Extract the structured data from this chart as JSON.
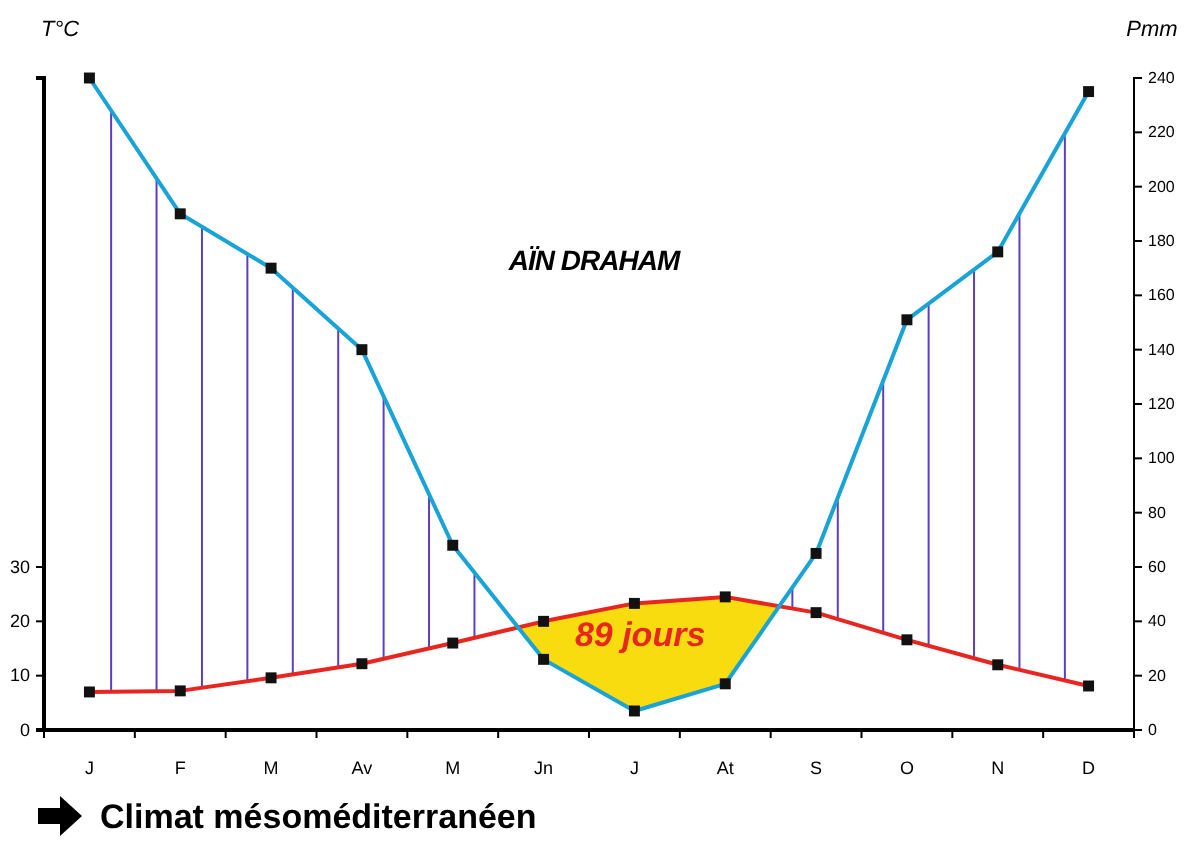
{
  "chart_data": {
    "type": "line",
    "title": "AÏN DRAHAM",
    "ylabel": "T°C",
    "y2label": "Pmm",
    "categories": [
      "J",
      "F",
      "M",
      "Av",
      "M",
      "Jn",
      "J",
      "At",
      "S",
      "O",
      "N",
      "D"
    ],
    "series": [
      {
        "axis": "y",
        "color": "#e8251f",
        "values": [
          7,
          7.2,
          9.6,
          12.2,
          16,
          20,
          23.3,
          24.5,
          21.6,
          16.6,
          12,
          8.1
        ]
      },
      {
        "axis": "y2",
        "color": "#1aa3d6",
        "values": [
          240,
          190,
          170,
          140,
          68,
          26,
          7,
          17,
          65,
          151,
          176,
          235
        ]
      }
    ],
    "ylim": [
      0,
      120
    ],
    "yticks": [
      0,
      10,
      20,
      30
    ],
    "y2lim": [
      0,
      240
    ],
    "y2ticks": [
      0,
      20,
      40,
      60,
      80,
      100,
      120,
      140,
      160,
      180,
      200,
      220,
      240
    ],
    "marker": "square",
    "line_style": "solid",
    "grid": false,
    "annotations": [
      "89 jours",
      "Climat mésoméditerranéen"
    ]
  }
}
